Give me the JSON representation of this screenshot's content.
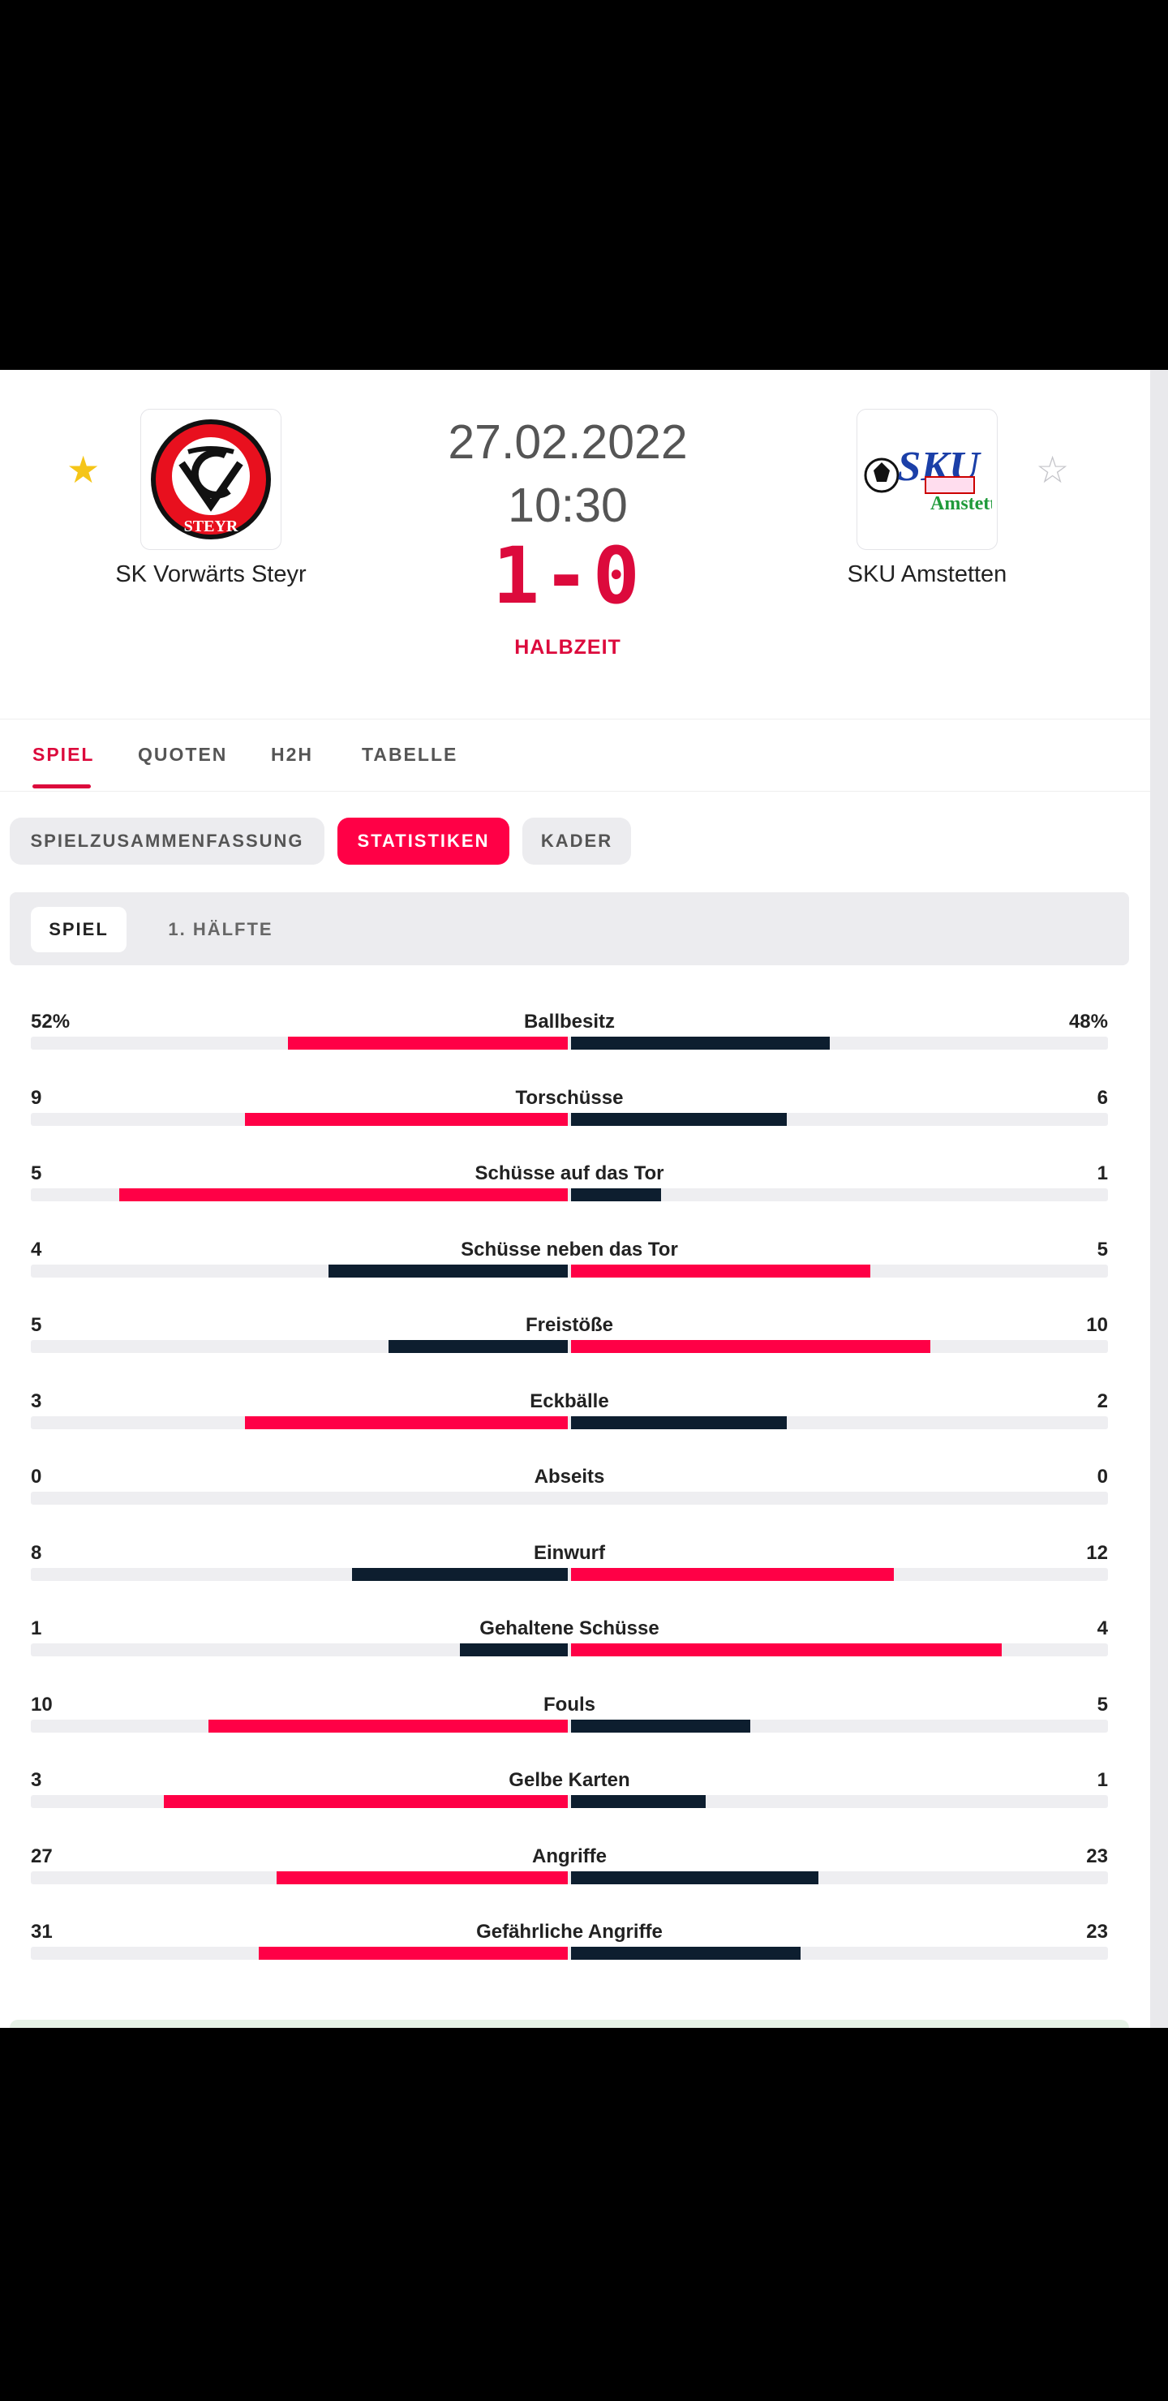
{
  "match": {
    "date": "27.02.2022",
    "time": "10:30",
    "score": "1-0",
    "status": "HALBZEIT",
    "home": {
      "name": "SK Vorwärts Steyr",
      "logo_text": "STEYR",
      "favorited": true
    },
    "away": {
      "name": "SKU Amstetten",
      "logo_text": "SKU",
      "logo_subtext": "Amstetten",
      "favorited": false
    }
  },
  "tabs": [
    "SPIEL",
    "QUOTEN",
    "H2H",
    "TABELLE"
  ],
  "active_tab": "SPIEL",
  "subtabs": [
    "SPIELZUSAMMENFASSUNG",
    "STATISTIKEN",
    "KADER"
  ],
  "active_subtab": "STATISTIKEN",
  "periods": [
    "SPIEL",
    "1. HÄLFTE"
  ],
  "active_period": "SPIEL",
  "colors": {
    "accent": "#ff0046",
    "dark": "#0d1e2f",
    "score": "#dc0a3c",
    "star": "#f5c518"
  },
  "stats": [
    {
      "label": "Ballbesitz",
      "home": "52%",
      "away": "48%",
      "home_num": 52,
      "away_num": 48
    },
    {
      "label": "Torschüsse",
      "home": "9",
      "away": "6",
      "home_num": 9,
      "away_num": 6
    },
    {
      "label": "Schüsse auf das Tor",
      "home": "5",
      "away": "1",
      "home_num": 5,
      "away_num": 1
    },
    {
      "label": "Schüsse neben das Tor",
      "home": "4",
      "away": "5",
      "home_num": 4,
      "away_num": 5
    },
    {
      "label": "Freistöße",
      "home": "5",
      "away": "10",
      "home_num": 5,
      "away_num": 10
    },
    {
      "label": "Eckbälle",
      "home": "3",
      "away": "2",
      "home_num": 3,
      "away_num": 2
    },
    {
      "label": "Abseits",
      "home": "0",
      "away": "0",
      "home_num": 0,
      "away_num": 0
    },
    {
      "label": "Einwurf",
      "home": "8",
      "away": "12",
      "home_num": 8,
      "away_num": 12
    },
    {
      "label": "Gehaltene Schüsse",
      "home": "1",
      "away": "4",
      "home_num": 1,
      "away_num": 4
    },
    {
      "label": "Fouls",
      "home": "10",
      "away": "5",
      "home_num": 10,
      "away_num": 5
    },
    {
      "label": "Gelbe Karten",
      "home": "3",
      "away": "1",
      "home_num": 3,
      "away_num": 1
    },
    {
      "label": "Angriffe",
      "home": "27",
      "away": "23",
      "home_num": 27,
      "away_num": 23
    },
    {
      "label": "Gefährliche Angriffe",
      "home": "31",
      "away": "23",
      "home_num": 31,
      "away_num": 23
    }
  ]
}
